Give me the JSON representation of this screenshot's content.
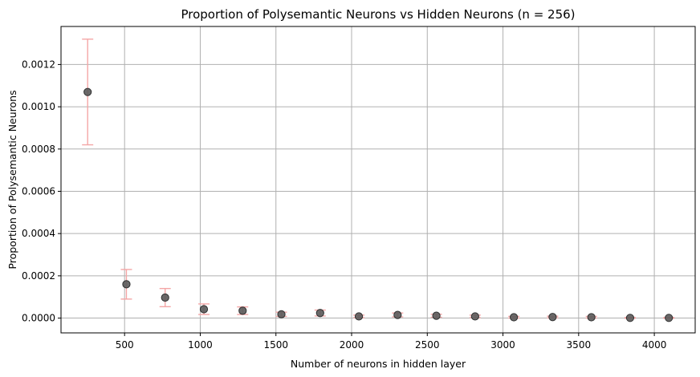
{
  "chart_data": {
    "type": "scatter",
    "title": "Proportion of Polysemantic Neurons vs Hidden Neurons (n = 256)",
    "xlabel": "Number of neurons in hidden layer",
    "ylabel": "Proportion of Polysemantic Neurons",
    "xlim": [
      80,
      4270
    ],
    "ylim": [
      -7e-05,
      0.00138
    ],
    "xticks": [
      500,
      1000,
      1500,
      2000,
      2500,
      3000,
      3500,
      4000
    ],
    "yticks": [
      0.0,
      0.0002,
      0.0004,
      0.0006,
      0.0008,
      0.001,
      0.0012
    ],
    "ytick_labels": [
      "0.0000",
      "0.0002",
      "0.0004",
      "0.0006",
      "0.0008",
      "0.0010",
      "0.0012"
    ],
    "grid": true,
    "colors": {
      "points": "#5a5a5a",
      "error_bars": "#f4a6a6",
      "grid": "#b0b0b0"
    },
    "x": [
      256,
      512,
      768,
      1024,
      1280,
      1536,
      1792,
      2048,
      2304,
      2560,
      2816,
      3072,
      3328,
      3584,
      3840,
      4096
    ],
    "y": [
      0.00107,
      0.00016,
      9.7e-05,
      4.2e-05,
      3.5e-05,
      1.8e-05,
      2.4e-05,
      8e-06,
      1.5e-05,
      1.1e-05,
      8e-06,
      4e-06,
      5e-06,
      4e-06,
      1e-06,
      1e-06
    ],
    "yerr": [
      0.00025,
      7e-05,
      4.3e-05,
      2.5e-05,
      1.8e-05,
      1e-05,
      1.4e-05,
      6e-06,
      9e-06,
      7e-06,
      6e-06,
      4e-06,
      4e-06,
      4e-06,
      2e-06,
      2e-06
    ]
  }
}
